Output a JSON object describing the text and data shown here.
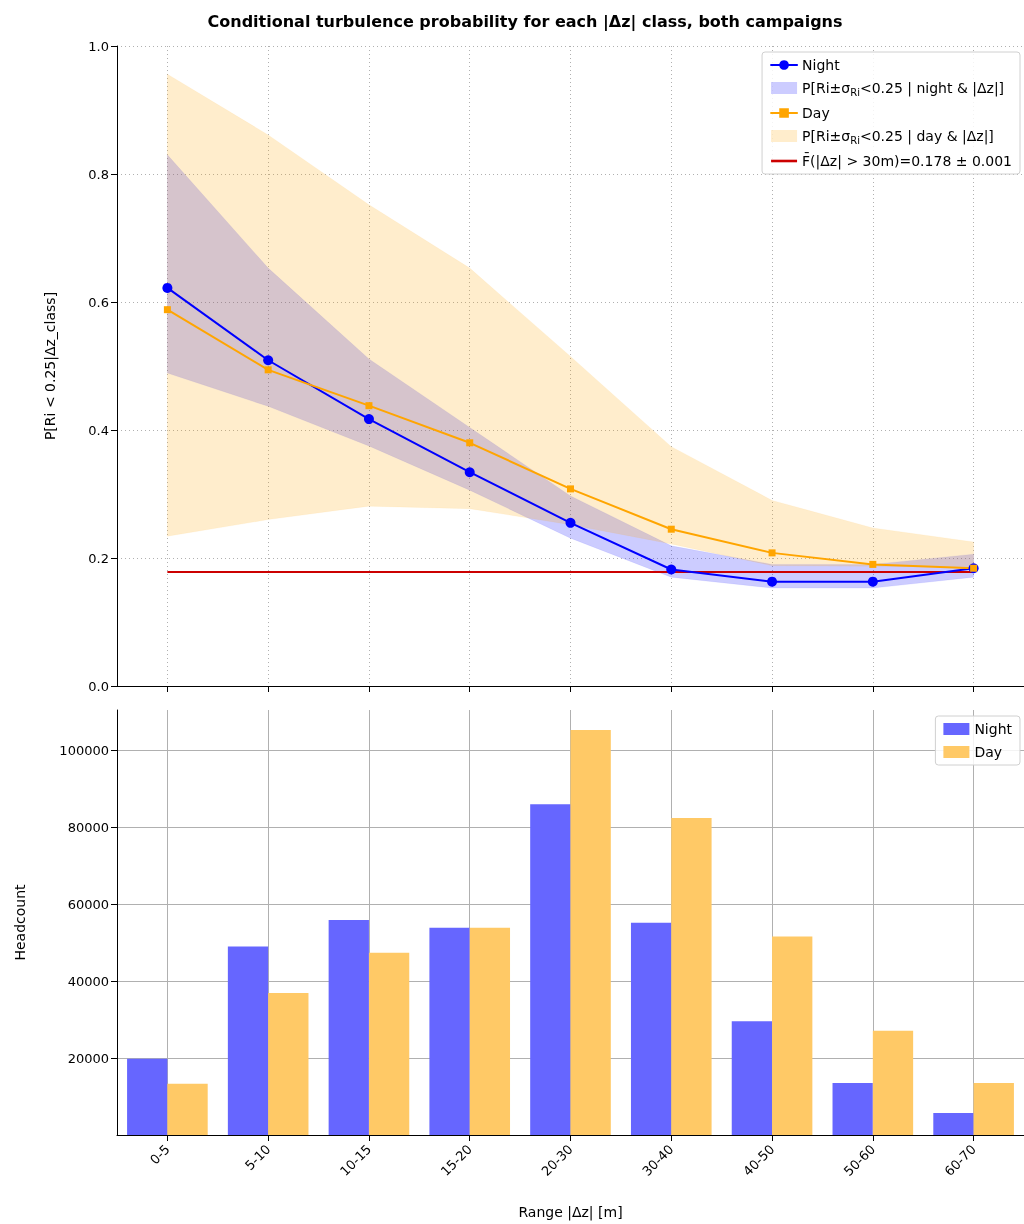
{
  "chart_data": [
    {
      "type": "line",
      "title": "Conditional turbulence probability for each |Δz| class, both campaigns",
      "ylabel": "P[Ri < 0.25|Δz_class]",
      "categories": [
        null,
        null,
        null,
        null,
        null,
        null,
        null,
        null,
        null
      ],
      "series": [
        {
          "name": "Night",
          "color": "#0000ff",
          "marker": "circle",
          "values": [
            0.622,
            0.509,
            0.417,
            0.334,
            0.255,
            0.182,
            0.163,
            0.163,
            0.184
          ]
        },
        {
          "type": "area",
          "name": "P[Ri±σ$_{Ri}$<0.25 | night & |Δz|]",
          "color": "#0000ff",
          "values": [
            null,
            null,
            null,
            null,
            null,
            null,
            null,
            null,
            null
          ],
          "lower": [
            0.489,
            0.437,
            0.375,
            0.306,
            0.231,
            0.17,
            0.153,
            0.153,
            0.17
          ],
          "upper": [
            0.83,
            0.653,
            0.511,
            0.404,
            0.297,
            0.219,
            0.19,
            0.19,
            0.206
          ]
        },
        {
          "name": "Day",
          "color": "#ffa500",
          "marker": "square",
          "values": [
            0.588,
            0.494,
            0.438,
            0.38,
            0.308,
            0.245,
            0.208,
            0.19,
            0.184
          ]
        },
        {
          "type": "area",
          "name": "P[Ri±σ$_{Ri}$<0.25 | day & |Δz|]",
          "color": "#ffa500",
          "values": [
            null,
            null,
            null,
            null,
            null,
            null,
            null,
            null,
            null
          ],
          "lower": [
            0.234,
            0.26,
            0.281,
            0.277,
            0.252,
            0.222,
            0.188,
            0.187,
            0.185
          ],
          "upper": [
            0.956,
            0.861,
            0.752,
            0.653,
            0.515,
            0.374,
            0.29,
            0.247,
            0.225
          ]
        }
      ],
      "ref_lines": [
        {
          "axis": "y",
          "value": 0.178,
          "label": "F̄(|Δz| > 30m)=0.178 ± 0.001",
          "color": "#cc0000"
        }
      ],
      "ylim": [
        0,
        1
      ],
      "yticks": [
        {
          "value": 0,
          "label": "0.0"
        },
        0.2,
        0.4,
        0.6,
        0.8,
        {
          "value": 1,
          "label": "1.0"
        }
      ],
      "grid": true,
      "legend": "top right",
      "line_style": "solid",
      "tick_labels": "y"
    },
    {
      "type": "bar",
      "xlabel": "Range |Δz| [m]",
      "ylabel": "Headcount",
      "categories": [
        "0-5",
        "5-10",
        "10-15",
        "15-20",
        "20-30",
        "30-40",
        "40-50",
        "50-60",
        "60-70"
      ],
      "series": [
        {
          "name": "Night",
          "color": "#6666ff",
          "values": [
            19800,
            49000,
            55900,
            53900,
            86000,
            55200,
            29600,
            13500,
            5700
          ]
        },
        {
          "name": "Day",
          "color": "#ffc966",
          "values": [
            13300,
            36900,
            47400,
            53900,
            105300,
            82400,
            51600,
            27100,
            13500
          ]
        }
      ],
      "ylim": [
        0,
        110500
      ],
      "yticks": [
        20000,
        40000,
        60000,
        80000,
        100000
      ],
      "grid": true,
      "legend": "top right"
    }
  ]
}
